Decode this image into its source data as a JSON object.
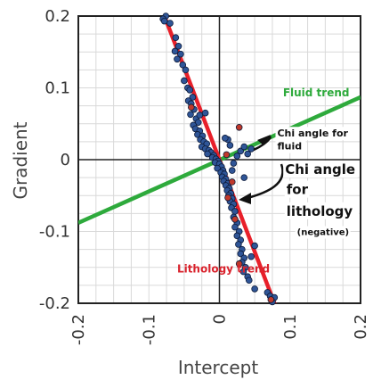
{
  "chart_data": {
    "type": "scatter",
    "title": "",
    "xlabel": "Intercept",
    "ylabel": "Gradient",
    "xlim": [
      -0.2,
      0.2
    ],
    "ylim": [
      -0.2,
      0.2
    ],
    "grid": true,
    "xticks": [
      -0.2,
      -0.1,
      0,
      0.1,
      0.2
    ],
    "yticks": [
      0.2,
      0.1,
      0,
      -0.1,
      -0.2
    ],
    "xtick_labels": [
      "-0.2",
      "-0.1",
      "0",
      "0.1",
      "0.2"
    ],
    "ytick_labels": [
      "0.2",
      "0.1",
      "0",
      "-0.1",
      "-0.2"
    ],
    "series": [
      {
        "type": "scatter",
        "color": "#2f5597",
        "points": [
          [
            -0.076,
            0.2
          ],
          [
            -0.08,
            0.196
          ],
          [
            -0.078,
            0.193
          ],
          [
            -0.07,
            0.19
          ],
          [
            -0.062,
            0.17
          ],
          [
            -0.058,
            0.158
          ],
          [
            -0.063,
            0.151
          ],
          [
            -0.055,
            0.147
          ],
          [
            -0.052,
            0.132
          ],
          [
            -0.06,
            0.14
          ],
          [
            -0.048,
            0.125
          ],
          [
            -0.045,
            0.1
          ],
          [
            -0.05,
            0.11
          ],
          [
            -0.042,
            0.097
          ],
          [
            -0.038,
            0.087
          ],
          [
            -0.044,
            0.082
          ],
          [
            -0.04,
            0.078
          ],
          [
            -0.036,
            0.07
          ],
          [
            -0.041,
            0.063
          ],
          [
            -0.033,
            0.057
          ],
          [
            -0.03,
            0.052
          ],
          [
            -0.037,
            0.048
          ],
          [
            -0.034,
            0.043
          ],
          [
            -0.028,
            0.04
          ],
          [
            -0.031,
            0.035
          ],
          [
            -0.024,
            0.033
          ],
          [
            -0.027,
            0.028
          ],
          [
            -0.022,
            0.025
          ],
          [
            -0.018,
            0.022
          ],
          [
            -0.025,
            0.018
          ],
          [
            -0.02,
            0.015
          ],
          [
            -0.015,
            0.013
          ],
          [
            -0.012,
            0.01
          ],
          [
            -0.017,
            0.008
          ],
          [
            -0.008,
            0.006
          ],
          [
            -0.01,
            0.003
          ],
          [
            -0.005,
            0.001
          ],
          [
            -0.002,
            -0.002
          ],
          [
            -0.006,
            -0.004
          ],
          [
            0.0,
            -0.006
          ],
          [
            0.003,
            -0.01
          ],
          [
            -0.003,
            -0.012
          ],
          [
            0.005,
            -0.015
          ],
          [
            0.002,
            -0.018
          ],
          [
            0.007,
            -0.02
          ],
          [
            0.004,
            -0.024
          ],
          [
            0.009,
            -0.027
          ],
          [
            0.006,
            -0.03
          ],
          [
            0.012,
            -0.033
          ],
          [
            0.009,
            -0.036
          ],
          [
            0.014,
            -0.04
          ],
          [
            0.011,
            -0.043
          ],
          [
            0.016,
            -0.047
          ],
          [
            0.013,
            -0.05
          ],
          [
            0.018,
            -0.054
          ],
          [
            0.015,
            -0.058
          ],
          [
            0.02,
            -0.062
          ],
          [
            0.017,
            -0.067
          ],
          [
            0.022,
            -0.072
          ],
          [
            0.02,
            -0.08
          ],
          [
            0.025,
            -0.088
          ],
          [
            0.022,
            -0.094
          ],
          [
            0.028,
            -0.1
          ],
          [
            0.025,
            -0.106
          ],
          [
            0.03,
            -0.112
          ],
          [
            0.027,
            -0.118
          ],
          [
            0.032,
            -0.125
          ],
          [
            0.03,
            -0.131
          ],
          [
            0.035,
            -0.137
          ],
          [
            0.032,
            -0.143
          ],
          [
            0.037,
            -0.15
          ],
          [
            0.034,
            -0.156
          ],
          [
            0.04,
            -0.163
          ],
          [
            0.042,
            -0.168
          ],
          [
            0.05,
            -0.18
          ],
          [
            0.068,
            -0.185
          ],
          [
            0.072,
            -0.19
          ],
          [
            0.078,
            -0.192
          ],
          [
            0.075,
            -0.198
          ],
          [
            0.015,
            0.02
          ],
          [
            0.03,
            0.012
          ],
          [
            0.025,
            0.005
          ],
          [
            0.035,
            0.018
          ],
          [
            0.04,
            0.008
          ],
          [
            0.02,
            -0.005
          ],
          [
            0.045,
            0.015
          ],
          [
            -0.028,
            0.062
          ],
          [
            0.018,
            -0.015
          ],
          [
            0.012,
            0.028
          ],
          [
            0.008,
            0.03
          ],
          [
            -0.02,
            0.065
          ],
          [
            0.035,
            -0.025
          ],
          [
            0.05,
            -0.12
          ],
          [
            0.045,
            -0.135
          ]
        ]
      },
      {
        "type": "scatter",
        "color": "#c0392b",
        "points": [
          [
            -0.04,
            0.073
          ],
          [
            0.028,
            0.045
          ],
          [
            0.01,
            0.007
          ],
          [
            0.018,
            -0.031
          ],
          [
            0.012,
            -0.053
          ],
          [
            0.022,
            -0.083
          ],
          [
            0.028,
            -0.145
          ],
          [
            0.073,
            -0.195
          ]
        ]
      }
    ],
    "lines": [
      {
        "name": "Fluid trend",
        "color": "#2eaa3c",
        "from": [
          -0.2,
          -0.088
        ],
        "to": [
          0.2,
          0.087
        ]
      },
      {
        "name": "Lithology trend",
        "color": "#e8202a",
        "from": [
          -0.085,
          0.218
        ],
        "to": [
          0.085,
          -0.218
        ]
      }
    ],
    "annotations": [
      {
        "text": "Fluid trend",
        "color": "#2eaa3c",
        "anchor_data": [
          0.09,
          0.088
        ]
      },
      {
        "text": "Lithology trend",
        "color": "#d9232d",
        "anchor_data": [
          -0.06,
          -0.157
        ]
      },
      {
        "text": "Chi angle for",
        "color": "#111111",
        "anchor_data": [
          0.082,
          0.032
        ]
      },
      {
        "text": "fluid",
        "color": "#111111",
        "anchor_data": [
          0.082,
          0.014
        ]
      },
      {
        "text": "Chi angle",
        "color": "#111111",
        "anchor_data": [
          0.093,
          -0.02
        ]
      },
      {
        "text": "for",
        "color": "#111111",
        "anchor_data": [
          0.095,
          -0.048
        ]
      },
      {
        "text": "lithology",
        "color": "#111111",
        "anchor_data": [
          0.095,
          -0.078
        ]
      },
      {
        "text": "(negative)",
        "color": "#111111",
        "anchor_data": [
          0.11,
          -0.105
        ]
      }
    ]
  }
}
